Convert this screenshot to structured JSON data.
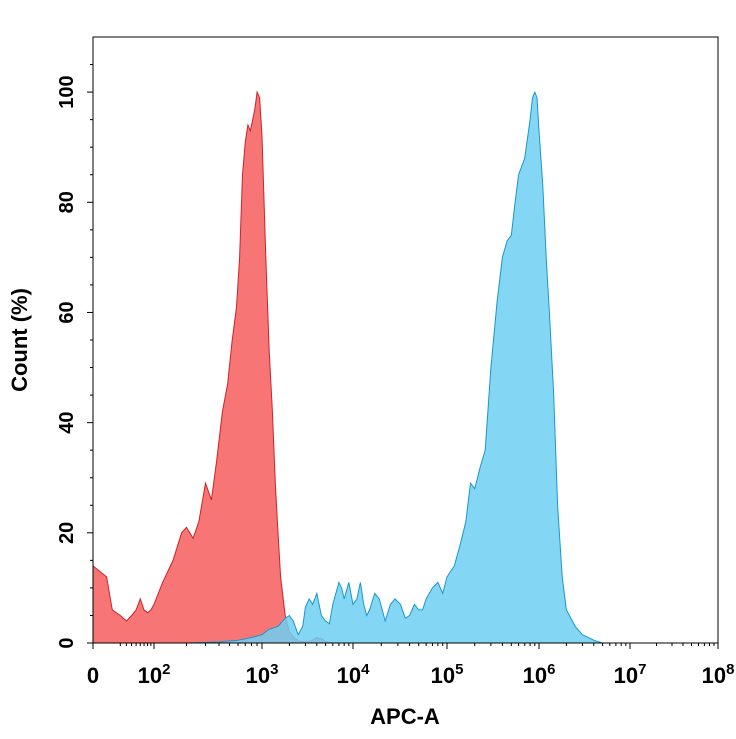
{
  "chart_data": {
    "type": "area",
    "xlabel": "APC-A",
    "ylabel": "Count (%)",
    "x_scale": "biexponential",
    "xlim": [
      0,
      100000000
    ],
    "ylim": [
      0,
      110
    ],
    "grid": false,
    "x_ticks": [
      {
        "value": 0,
        "base": "0",
        "exp": ""
      },
      {
        "value": 100,
        "base": "10",
        "exp": "2"
      },
      {
        "value": 1000,
        "base": "10",
        "exp": "3"
      },
      {
        "value": 10000,
        "base": "10",
        "exp": "4"
      },
      {
        "value": 100000,
        "base": "10",
        "exp": "5"
      },
      {
        "value": 1000000,
        "base": "10",
        "exp": "6"
      },
      {
        "value": 10000000,
        "base": "10",
        "exp": "7"
      },
      {
        "value": 100000000,
        "base": "10",
        "exp": "8"
      }
    ],
    "y_ticks": [
      "0",
      "20",
      "40",
      "60",
      "80",
      "100"
    ],
    "series": [
      {
        "color": "#f55252",
        "stroke": "#c8252b",
        "points": [
          [
            0,
            14
          ],
          [
            5,
            12
          ],
          [
            10,
            6
          ],
          [
            20,
            5
          ],
          [
            30,
            4
          ],
          [
            40,
            5
          ],
          [
            50,
            6
          ],
          [
            60,
            8
          ],
          [
            70,
            6
          ],
          [
            80,
            5.5
          ],
          [
            90,
            6
          ],
          [
            100,
            7
          ],
          [
            120,
            11
          ],
          [
            150,
            15
          ],
          [
            180,
            20
          ],
          [
            200,
            21
          ],
          [
            230,
            19
          ],
          [
            260,
            22
          ],
          [
            300,
            29
          ],
          [
            340,
            26
          ],
          [
            380,
            33
          ],
          [
            430,
            42
          ],
          [
            480,
            47
          ],
          [
            530,
            55
          ],
          [
            580,
            61
          ],
          [
            620,
            70
          ],
          [
            660,
            85
          ],
          [
            700,
            91
          ],
          [
            740,
            94
          ],
          [
            780,
            93
          ],
          [
            820,
            95
          ],
          [
            860,
            97
          ],
          [
            900,
            100
          ],
          [
            950,
            99
          ],
          [
            1000,
            92
          ],
          [
            1050,
            81
          ],
          [
            1100,
            70
          ],
          [
            1200,
            53
          ],
          [
            1300,
            42
          ],
          [
            1400,
            29
          ],
          [
            1500,
            20
          ],
          [
            1600,
            12
          ],
          [
            1800,
            5
          ],
          [
            2000,
            2
          ],
          [
            2300,
            0.8
          ],
          [
            2600,
            0.3
          ],
          [
            3000,
            0.2
          ],
          [
            3500,
            0.4
          ],
          [
            4000,
            1
          ],
          [
            4500,
            0.8
          ],
          [
            5000,
            0.3
          ],
          [
            6000,
            0
          ]
        ]
      },
      {
        "color": "#6dd0f2",
        "stroke": "#1c96c9",
        "points": [
          [
            0,
            0
          ],
          [
            200,
            0
          ],
          [
            400,
            0.2
          ],
          [
            600,
            0.5
          ],
          [
            800,
            1
          ],
          [
            1000,
            1.5
          ],
          [
            1200,
            2.5
          ],
          [
            1500,
            3
          ],
          [
            1800,
            4.5
          ],
          [
            2000,
            5
          ],
          [
            2200,
            4
          ],
          [
            2500,
            1.5
          ],
          [
            2800,
            3
          ],
          [
            3000,
            6.5
          ],
          [
            3300,
            8
          ],
          [
            3600,
            7
          ],
          [
            4000,
            9
          ],
          [
            4500,
            5
          ],
          [
            5000,
            4
          ],
          [
            5500,
            3.5
          ],
          [
            6000,
            7
          ],
          [
            7000,
            11
          ],
          [
            7500,
            10
          ],
          [
            8000,
            8
          ],
          [
            9000,
            11
          ],
          [
            10000,
            7
          ],
          [
            11000,
            8
          ],
          [
            12000,
            11
          ],
          [
            13000,
            7
          ],
          [
            14000,
            5
          ],
          [
            15000,
            6
          ],
          [
            17000,
            9
          ],
          [
            19000,
            8
          ],
          [
            22000,
            4
          ],
          [
            25000,
            7
          ],
          [
            28000,
            8
          ],
          [
            32000,
            7
          ],
          [
            36000,
            4.5
          ],
          [
            40000,
            5
          ],
          [
            45000,
            7
          ],
          [
            50000,
            6
          ],
          [
            55000,
            6
          ],
          [
            60000,
            8
          ],
          [
            70000,
            10
          ],
          [
            80000,
            11
          ],
          [
            90000,
            9
          ],
          [
            100000,
            12
          ],
          [
            120000,
            14
          ],
          [
            140000,
            18
          ],
          [
            160000,
            22
          ],
          [
            180000,
            29
          ],
          [
            200000,
            28
          ],
          [
            230000,
            32
          ],
          [
            260000,
            35
          ],
          [
            300000,
            50
          ],
          [
            350000,
            62
          ],
          [
            400000,
            70
          ],
          [
            450000,
            73
          ],
          [
            500000,
            74
          ],
          [
            550000,
            80
          ],
          [
            600000,
            85
          ],
          [
            700000,
            88
          ],
          [
            800000,
            95
          ],
          [
            850000,
            99
          ],
          [
            900000,
            100
          ],
          [
            950000,
            99
          ],
          [
            1000000,
            93
          ],
          [
            1100000,
            83
          ],
          [
            1200000,
            70
          ],
          [
            1300000,
            60
          ],
          [
            1450000,
            45
          ],
          [
            1600000,
            25
          ],
          [
            1800000,
            12
          ],
          [
            2000000,
            6
          ],
          [
            2500000,
            3
          ],
          [
            3000000,
            1.5
          ],
          [
            4000000,
            0.5
          ],
          [
            5000000,
            0
          ]
        ]
      }
    ]
  }
}
